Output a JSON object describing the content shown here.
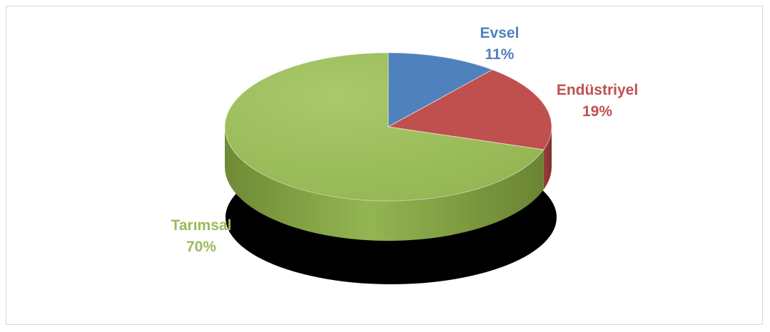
{
  "chart_data": {
    "type": "pie",
    "style": "3d",
    "title": "",
    "slices": [
      {
        "label": "Evsel",
        "value": 11,
        "value_text": "11%",
        "color": "#4f81bd"
      },
      {
        "label": "Endüstriyel",
        "value": 19,
        "value_text": "19%",
        "color": "#c0504d"
      },
      {
        "label": "Tarımsal",
        "value": 70,
        "value_text": "70%",
        "color": "#9bbb59"
      }
    ],
    "legend": "none",
    "data_labels": "outside"
  }
}
